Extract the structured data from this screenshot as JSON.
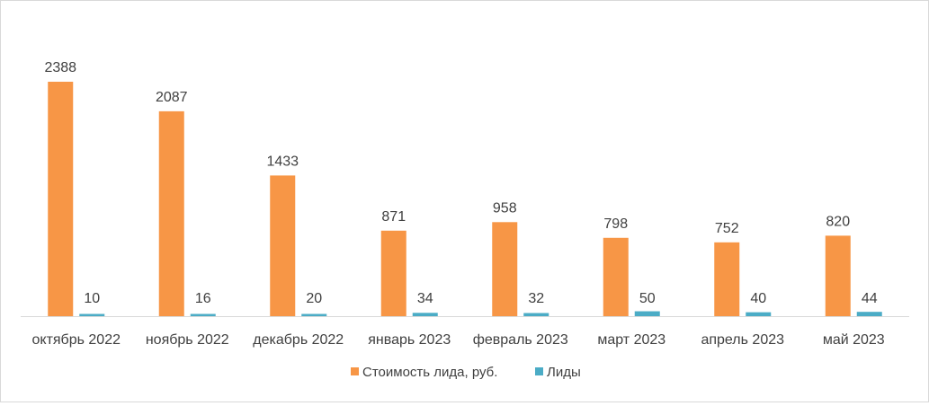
{
  "chart_data": {
    "type": "bar",
    "title": "",
    "xlabel": "",
    "ylabel": "",
    "categories": [
      "октябрь 2022",
      "ноябрь 2022",
      "декабрь 2022",
      "январь 2023",
      "февраль 2023",
      "март 2023",
      "апрель 2023",
      "май 2023"
    ],
    "series": [
      {
        "name": "Стоимость лида, руб.",
        "color": "#f79646",
        "values": [
          2388,
          2087,
          1433,
          871,
          958,
          798,
          752,
          820
        ]
      },
      {
        "name": "Лиды",
        "color": "#4bacc6",
        "values": [
          10,
          16,
          20,
          34,
          32,
          50,
          40,
          44
        ]
      }
    ],
    "ylim": [
      0,
      2388
    ],
    "grid": false,
    "legend_position": "bottom",
    "data_labels": true
  }
}
